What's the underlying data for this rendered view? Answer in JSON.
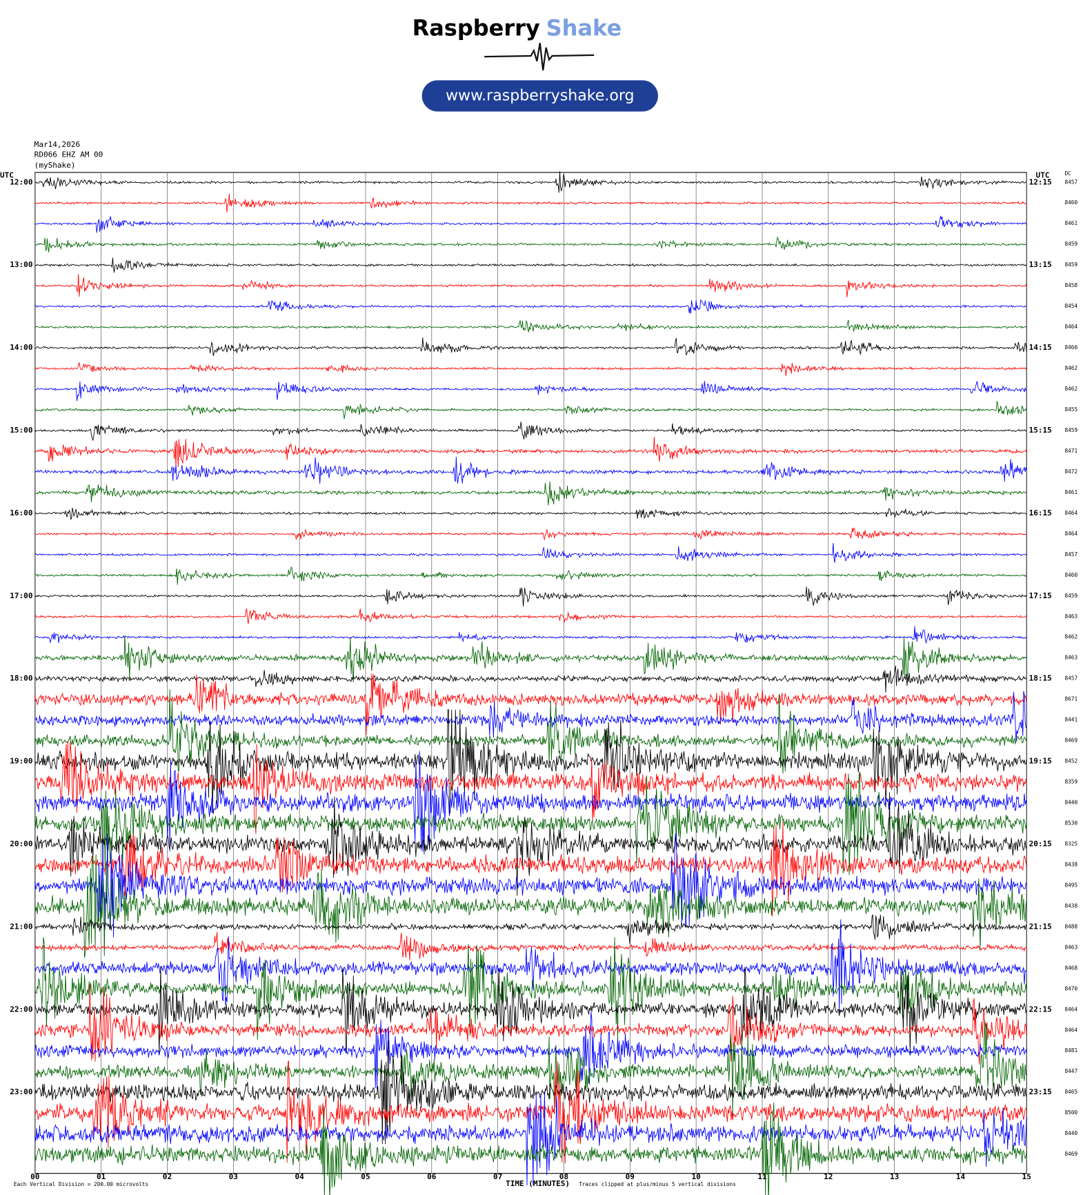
{
  "logo": {
    "word1": "Raspberry",
    "word2": "Shake",
    "url": "www.raspberryshake.org"
  },
  "chart_data": {
    "type": "helicorder",
    "date": "Mar14,2026",
    "station": "RD066 EHZ AM 00",
    "network": "(myShake)",
    "left_axis_title": "UTC",
    "right_axis_title": "UTC",
    "dc_title": "DC",
    "left_labels": [
      "12:00",
      "13:00",
      "14:00",
      "15:00",
      "16:00",
      "17:00",
      "18:00",
      "19:00",
      "20:00",
      "21:00",
      "22:00",
      "23:00"
    ],
    "right_labels": [
      "12:15",
      "13:15",
      "14:15",
      "15:15",
      "16:15",
      "17:15",
      "18:15",
      "19:15",
      "20:15",
      "21:15",
      "22:15",
      "23:15"
    ],
    "dc": [
      8457,
      8460,
      8461,
      8459,
      8459,
      8458,
      8454,
      8464,
      8460,
      8462,
      8462,
      8455,
      8459,
      8471,
      8472,
      8461,
      8464,
      8464,
      8457,
      8460,
      8459,
      8463,
      8462,
      8463,
      8457,
      8671,
      8441,
      8469,
      8452,
      8359,
      8440,
      8530,
      8325,
      8438,
      8495,
      8438,
      8488,
      8463,
      8468,
      8470,
      8464,
      8464,
      8481,
      8447,
      8465,
      8500,
      8440,
      8469
    ],
    "trace_colors": [
      "#000000",
      "#ff0000",
      "#0000ff",
      "#006400"
    ],
    "xlim": [
      0,
      15
    ],
    "xticks": [
      {
        "value": 0,
        "label": "00"
      },
      {
        "value": 1,
        "label": "01"
      },
      {
        "value": 2,
        "label": "02"
      },
      {
        "value": 3,
        "label": "03"
      },
      {
        "value": 4,
        "label": "04"
      },
      {
        "value": 5,
        "label": "05"
      },
      {
        "value": 6,
        "label": "06"
      },
      {
        "value": 7,
        "label": "07"
      },
      {
        "value": 8,
        "label": "08"
      },
      {
        "value": 9,
        "label": "09"
      },
      {
        "value": 10,
        "label": "10"
      },
      {
        "value": 11,
        "label": "11"
      },
      {
        "value": 12,
        "label": "12"
      },
      {
        "value": 13,
        "label": "13"
      },
      {
        "value": 14,
        "label": "14"
      },
      {
        "value": 15,
        "label": "15"
      }
    ],
    "x_label": "TIME (MINUTES)",
    "scale_note": "Each Vertical Division = 200.00 microvolts",
    "clip_note": "Traces clipped at plus/minus 5 vertical divisions",
    "grid": true
  }
}
